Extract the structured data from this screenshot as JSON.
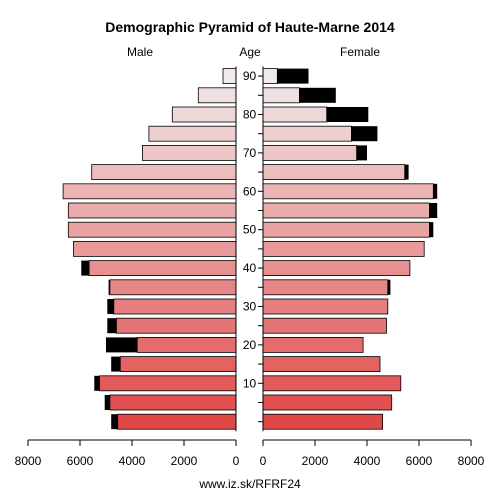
{
  "chart_data": {
    "type": "bar",
    "subtype": "population-pyramid",
    "title": "Demographic Pyramid of Haute-Marne 2014",
    "male_header": "Male",
    "age_header": "Age",
    "female_header": "Female",
    "source": "www.iz.sk/RFRF24",
    "xlim": [
      0,
      8000
    ],
    "x_ticks_male": [
      "8000",
      "6000",
      "4000",
      "2000",
      "0"
    ],
    "x_ticks_female": [
      "0",
      "2000",
      "4000",
      "6000",
      "8000"
    ],
    "age_ticks": [
      "10",
      "20",
      "30",
      "40",
      "50",
      "60",
      "70",
      "80",
      "90"
    ],
    "age_groups": [
      "0-4",
      "5-9",
      "10-14",
      "15-19",
      "20-24",
      "25-29",
      "30-34",
      "35-39",
      "40-44",
      "45-49",
      "50-54",
      "55-59",
      "60-64",
      "65-69",
      "70-74",
      "75-79",
      "80-84",
      "85-89",
      "90+"
    ],
    "male_total": [
      4800,
      5050,
      5450,
      4800,
      5000,
      4950,
      4950,
      4900,
      5950,
      6250,
      6450,
      6450,
      6650,
      5550,
      3600,
      3350,
      2450,
      1450,
      500
    ],
    "male_dark_part": [
      250,
      200,
      200,
      350,
      1200,
      350,
      250,
      50,
      300,
      0,
      0,
      0,
      0,
      0,
      0,
      0,
      0,
      0,
      0
    ],
    "female_total": [
      4600,
      4950,
      5300,
      4500,
      3850,
      4750,
      4800,
      4900,
      5650,
      6200,
      6550,
      6700,
      6700,
      5600,
      4000,
      4400,
      4050,
      2800,
      1750
    ],
    "female_dark_part": [
      0,
      0,
      0,
      0,
      0,
      0,
      0,
      100,
      0,
      0,
      150,
      300,
      150,
      150,
      400,
      1000,
      1600,
      1400,
      1200
    ],
    "colors": {
      "young": "#e04848",
      "old": "#f0eaea",
      "outline": "#000000",
      "excess": "#000000"
    }
  }
}
